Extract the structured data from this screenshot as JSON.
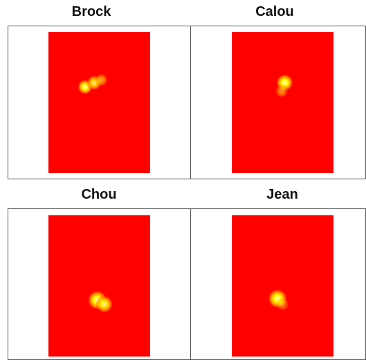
{
  "chart_data": [
    {
      "type": "heatmap",
      "title": "Brock",
      "background_color": "#ff0000",
      "hotspots": [
        {
          "x": 0.36,
          "y": 0.39,
          "intensity": 1.0,
          "spread": 0.035
        },
        {
          "x": 0.45,
          "y": 0.36,
          "intensity": 0.85,
          "spread": 0.035
        },
        {
          "x": 0.52,
          "y": 0.34,
          "intensity": 0.55,
          "spread": 0.03
        }
      ]
    },
    {
      "type": "heatmap",
      "title": "Calou",
      "background_color": "#ff0000",
      "hotspots": [
        {
          "x": 0.52,
          "y": 0.36,
          "intensity": 1.0,
          "spread": 0.04
        },
        {
          "x": 0.49,
          "y": 0.42,
          "intensity": 0.5,
          "spread": 0.03
        }
      ]
    },
    {
      "type": "heatmap",
      "title": "Chou",
      "background_color": "#ff0000",
      "hotspots": [
        {
          "x": 0.48,
          "y": 0.6,
          "intensity": 1.0,
          "spread": 0.045
        },
        {
          "x": 0.55,
          "y": 0.63,
          "intensity": 0.9,
          "spread": 0.04
        }
      ]
    },
    {
      "type": "heatmap",
      "title": "Jean",
      "background_color": "#ff0000",
      "hotspots": [
        {
          "x": 0.45,
          "y": 0.59,
          "intensity": 1.0,
          "spread": 0.045
        },
        {
          "x": 0.5,
          "y": 0.63,
          "intensity": 0.4,
          "spread": 0.03
        }
      ]
    }
  ]
}
